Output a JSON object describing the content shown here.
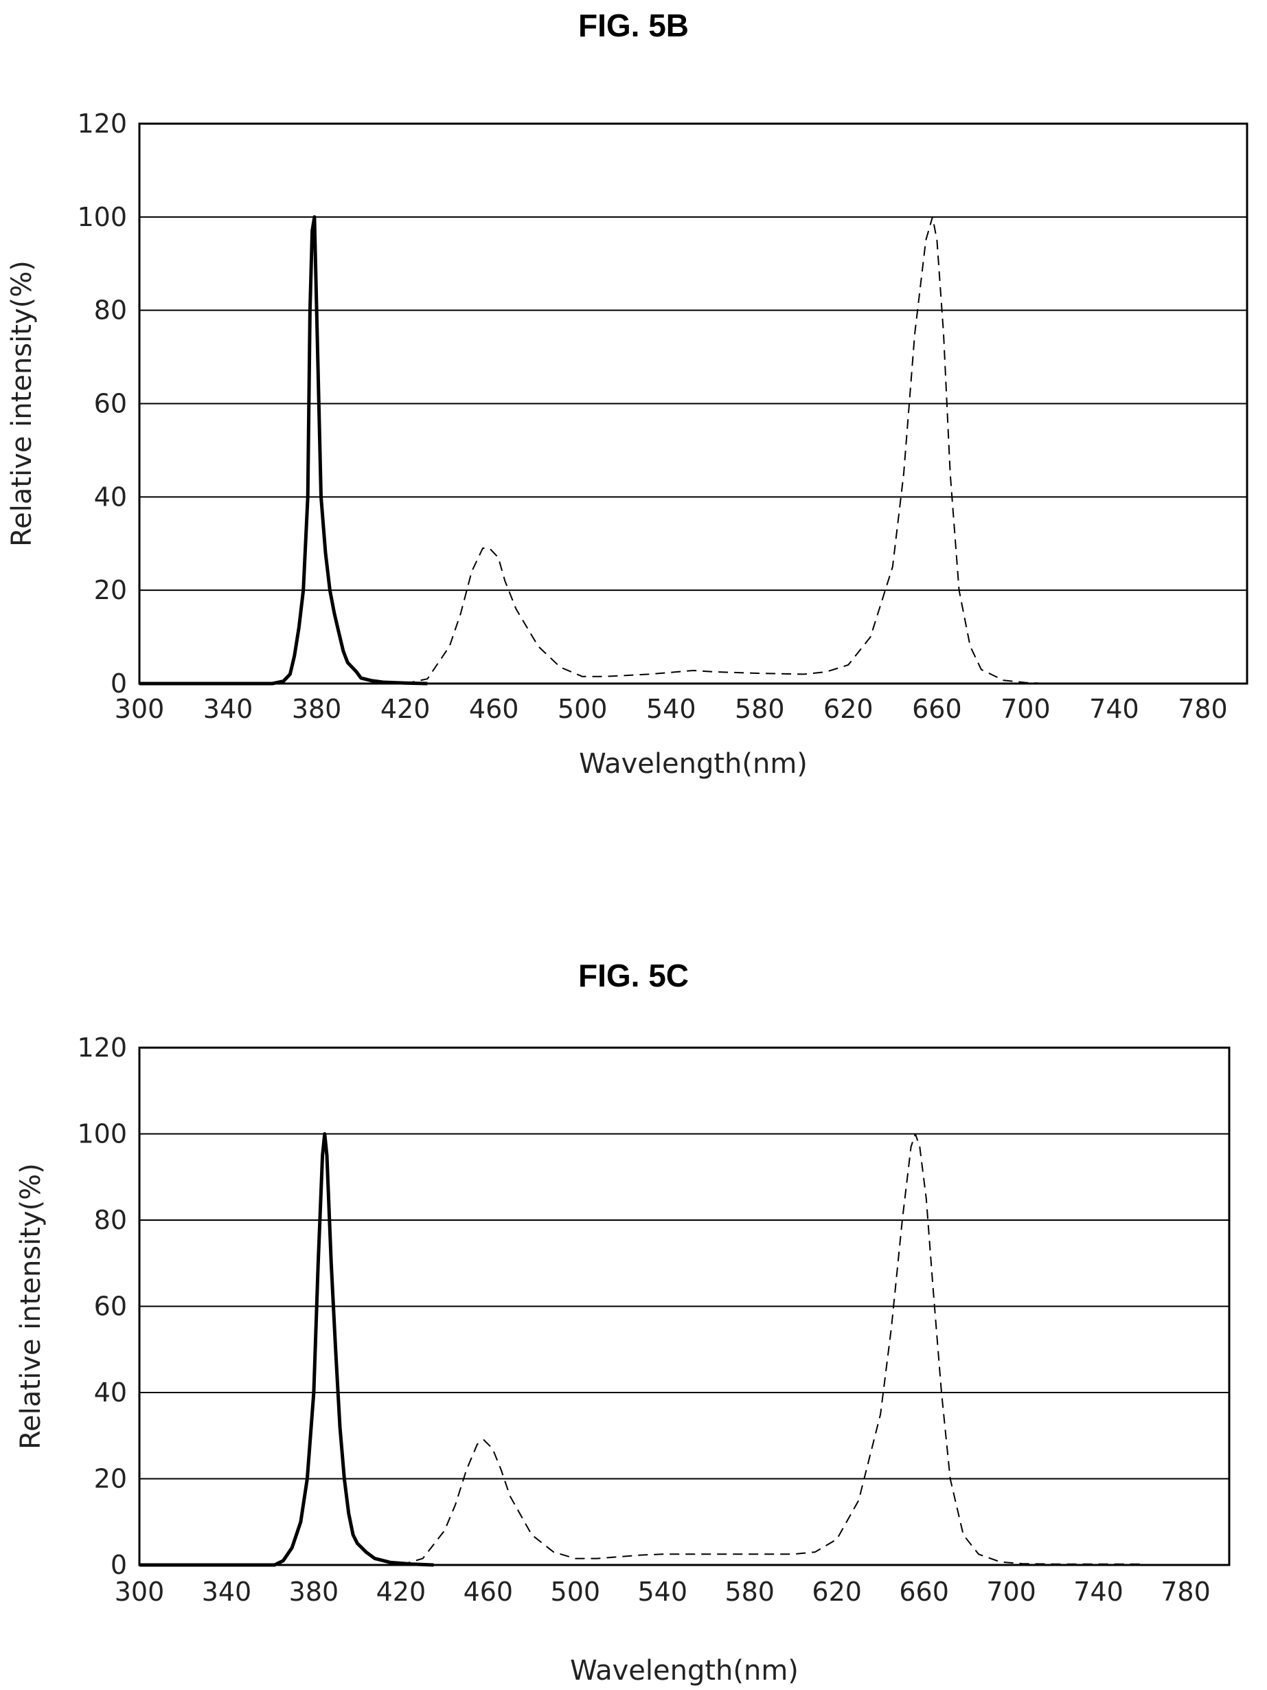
{
  "chart_data": [
    {
      "type": "line",
      "title": "FIG. 5B",
      "xlabel": "Wavelength(nm)",
      "ylabel": "Relative intensity(%)",
      "xlim": [
        300,
        800
      ],
      "ylim": [
        0,
        120
      ],
      "xticks": [
        300,
        340,
        380,
        420,
        460,
        500,
        540,
        580,
        620,
        660,
        700,
        740,
        780
      ],
      "yticks": [
        0,
        20,
        40,
        60,
        80,
        100,
        120
      ],
      "grid": "horizontal",
      "series": [
        {
          "style": "solid",
          "color": "#000000",
          "x": [
            300,
            360,
            365,
            368,
            370,
            372,
            374,
            376,
            377,
            378,
            379,
            380,
            382,
            384,
            386,
            388,
            390,
            392,
            394,
            396,
            398,
            400,
            405,
            410,
            420,
            430
          ],
          "y": [
            0,
            0,
            0.5,
            2,
            6,
            12,
            20,
            40,
            80,
            97,
            100,
            80,
            40,
            28,
            20,
            15,
            11,
            7,
            4.5,
            3.5,
            2.5,
            1.2,
            0.6,
            0.3,
            0.1,
            0
          ]
        },
        {
          "style": "dashed",
          "color": "#000000",
          "x": [
            420,
            430,
            440,
            445,
            450,
            455,
            458,
            462,
            465,
            470,
            480,
            490,
            500,
            510,
            530,
            550,
            560,
            580,
            600,
            610,
            620,
            630,
            640,
            645,
            650,
            655,
            658,
            660,
            663,
            666,
            670,
            675,
            680,
            690,
            700,
            710,
            720
          ],
          "y": [
            0,
            1,
            8,
            15,
            24,
            29,
            29,
            27,
            22,
            16,
            8,
            3.5,
            1.5,
            1.5,
            2,
            2.8,
            2.5,
            2.2,
            2,
            2.5,
            4,
            10,
            25,
            45,
            75,
            95,
            100,
            95,
            75,
            45,
            20,
            8,
            3,
            0.7,
            0.2,
            0,
            0
          ]
        }
      ]
    },
    {
      "type": "line",
      "title": "FIG. 5C",
      "xlabel": "Wavelength(nm)",
      "ylabel": "Relative intensity(%)",
      "xlim": [
        300,
        800
      ],
      "ylim": [
        0,
        120
      ],
      "xticks": [
        300,
        340,
        380,
        420,
        460,
        500,
        540,
        580,
        620,
        660,
        700,
        740,
        780
      ],
      "yticks": [
        0,
        20,
        40,
        60,
        80,
        100,
        120
      ],
      "grid": "horizontal",
      "series": [
        {
          "style": "solid",
          "color": "#000000",
          "x": [
            300,
            362,
            366,
            370,
            374,
            377,
            380,
            382,
            384,
            385,
            386,
            388,
            390,
            392,
            394,
            396,
            398,
            400,
            404,
            408,
            415,
            425,
            435
          ],
          "y": [
            0,
            0,
            1,
            4,
            10,
            20,
            40,
            70,
            95,
            100,
            95,
            70,
            50,
            32,
            20,
            12,
            7,
            5,
            3,
            1.5,
            0.6,
            0.2,
            0
          ]
        },
        {
          "style": "dashed",
          "color": "#000000",
          "x": [
            420,
            430,
            440,
            445,
            450,
            455,
            458,
            462,
            466,
            470,
            480,
            490,
            500,
            510,
            530,
            540,
            580,
            600,
            610,
            620,
            630,
            640,
            645,
            650,
            654,
            656,
            658,
            661,
            664,
            668,
            672,
            678,
            685,
            695,
            705,
            720,
            760
          ],
          "y": [
            0,
            1.5,
            8,
            14,
            22,
            28,
            29,
            27,
            22,
            16,
            7,
            3,
            1.5,
            1.5,
            2.3,
            2.5,
            2.5,
            2.5,
            3,
            6,
            15,
            35,
            55,
            80,
            97,
            100,
            97,
            85,
            65,
            40,
            20,
            7,
            2.5,
            0.7,
            0.3,
            0.2,
            0.2
          ]
        }
      ]
    }
  ]
}
